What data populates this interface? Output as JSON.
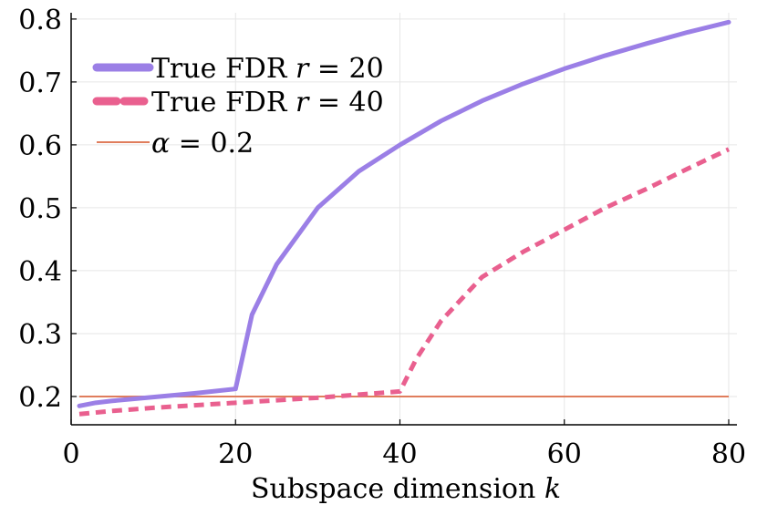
{
  "chart_data": {
    "type": "line",
    "xlabel": "Subspace dimension k",
    "ylabel": "",
    "xlim": [
      0,
      81
    ],
    "ylim": [
      0.155,
      0.81
    ],
    "xticks": [
      0,
      20,
      40,
      60,
      80
    ],
    "yticks": [
      0.2,
      0.3,
      0.4,
      0.5,
      0.6,
      0.7,
      0.8
    ],
    "grid": true,
    "legend_position": "top-left",
    "series": [
      {
        "name": "True FDR r = 20",
        "color": "#9b7fe6",
        "style": "solid",
        "x": [
          1,
          3,
          5,
          10,
          15,
          20,
          22,
          25,
          30,
          35,
          40,
          45,
          50,
          55,
          60,
          65,
          70,
          75,
          80
        ],
        "y": [
          0.185,
          0.19,
          0.193,
          0.199,
          0.205,
          0.212,
          0.33,
          0.41,
          0.5,
          0.558,
          0.6,
          0.638,
          0.67,
          0.697,
          0.721,
          0.742,
          0.761,
          0.779,
          0.795
        ]
      },
      {
        "name": "True FDR r = 40",
        "color": "#e9608f",
        "style": "dashed",
        "x": [
          1,
          5,
          10,
          15,
          20,
          25,
          30,
          35,
          40,
          42,
          45,
          50,
          55,
          60,
          65,
          70,
          75,
          80
        ],
        "y": [
          0.172,
          0.177,
          0.182,
          0.186,
          0.19,
          0.194,
          0.198,
          0.203,
          0.208,
          0.26,
          0.32,
          0.39,
          0.43,
          0.465,
          0.5,
          0.53,
          0.562,
          0.593
        ]
      },
      {
        "name": "α = 0.2",
        "color": "#e07d5c",
        "style": "thin",
        "x": [
          1,
          80
        ],
        "y": [
          0.2,
          0.2
        ]
      }
    ],
    "legend": [
      {
        "prefix": "True FDR ",
        "var": "r",
        "rest": " = 20"
      },
      {
        "prefix": "True FDR ",
        "var": "r",
        "rest": " = 40"
      },
      {
        "prefix": "",
        "var": "α",
        "rest": " = 0.2"
      }
    ]
  },
  "labels": {
    "xlabel_text": "Subspace dimension ",
    "xlabel_var": "k"
  }
}
